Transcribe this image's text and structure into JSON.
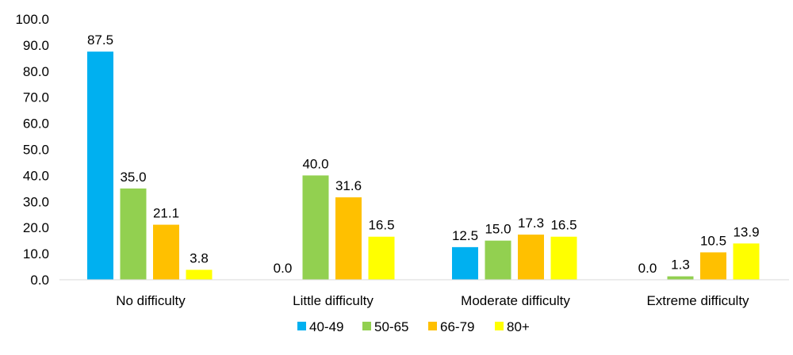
{
  "chart_data": {
    "type": "bar",
    "title": "",
    "xlabel": "",
    "ylabel": "",
    "ylim": [
      0,
      100
    ],
    "yticks": [
      "0.0",
      "10.0",
      "20.0",
      "30.0",
      "40.0",
      "50.0",
      "60.0",
      "70.0",
      "80.0",
      "90.0",
      "100.0"
    ],
    "categories": [
      "No difficulty",
      "Little difficulty",
      "Moderate difficulty",
      "Extreme difficulty"
    ],
    "series": [
      {
        "name": "40-49",
        "color": "#00B0F0",
        "values": [
          87.5,
          0.0,
          12.5,
          0.0
        ],
        "labels": [
          "87.5",
          "0.0",
          "12.5",
          "0.0"
        ]
      },
      {
        "name": "50-65",
        "color": "#92D050",
        "values": [
          35.0,
          40.0,
          15.0,
          1.3
        ],
        "labels": [
          "35.0",
          "40.0",
          "15.0",
          "1.3"
        ]
      },
      {
        "name": "66-79",
        "color": "#FFC000",
        "values": [
          21.1,
          31.6,
          17.3,
          10.5
        ],
        "labels": [
          "21.1",
          "31.6",
          "17.3",
          "10.5"
        ]
      },
      {
        "name": "80+",
        "color": "#FFFF00",
        "values": [
          3.8,
          16.5,
          16.5,
          13.9
        ],
        "labels": [
          "3.8",
          "16.5",
          "16.5",
          "13.9"
        ]
      }
    ],
    "grid": false,
    "legend": "bottom"
  }
}
